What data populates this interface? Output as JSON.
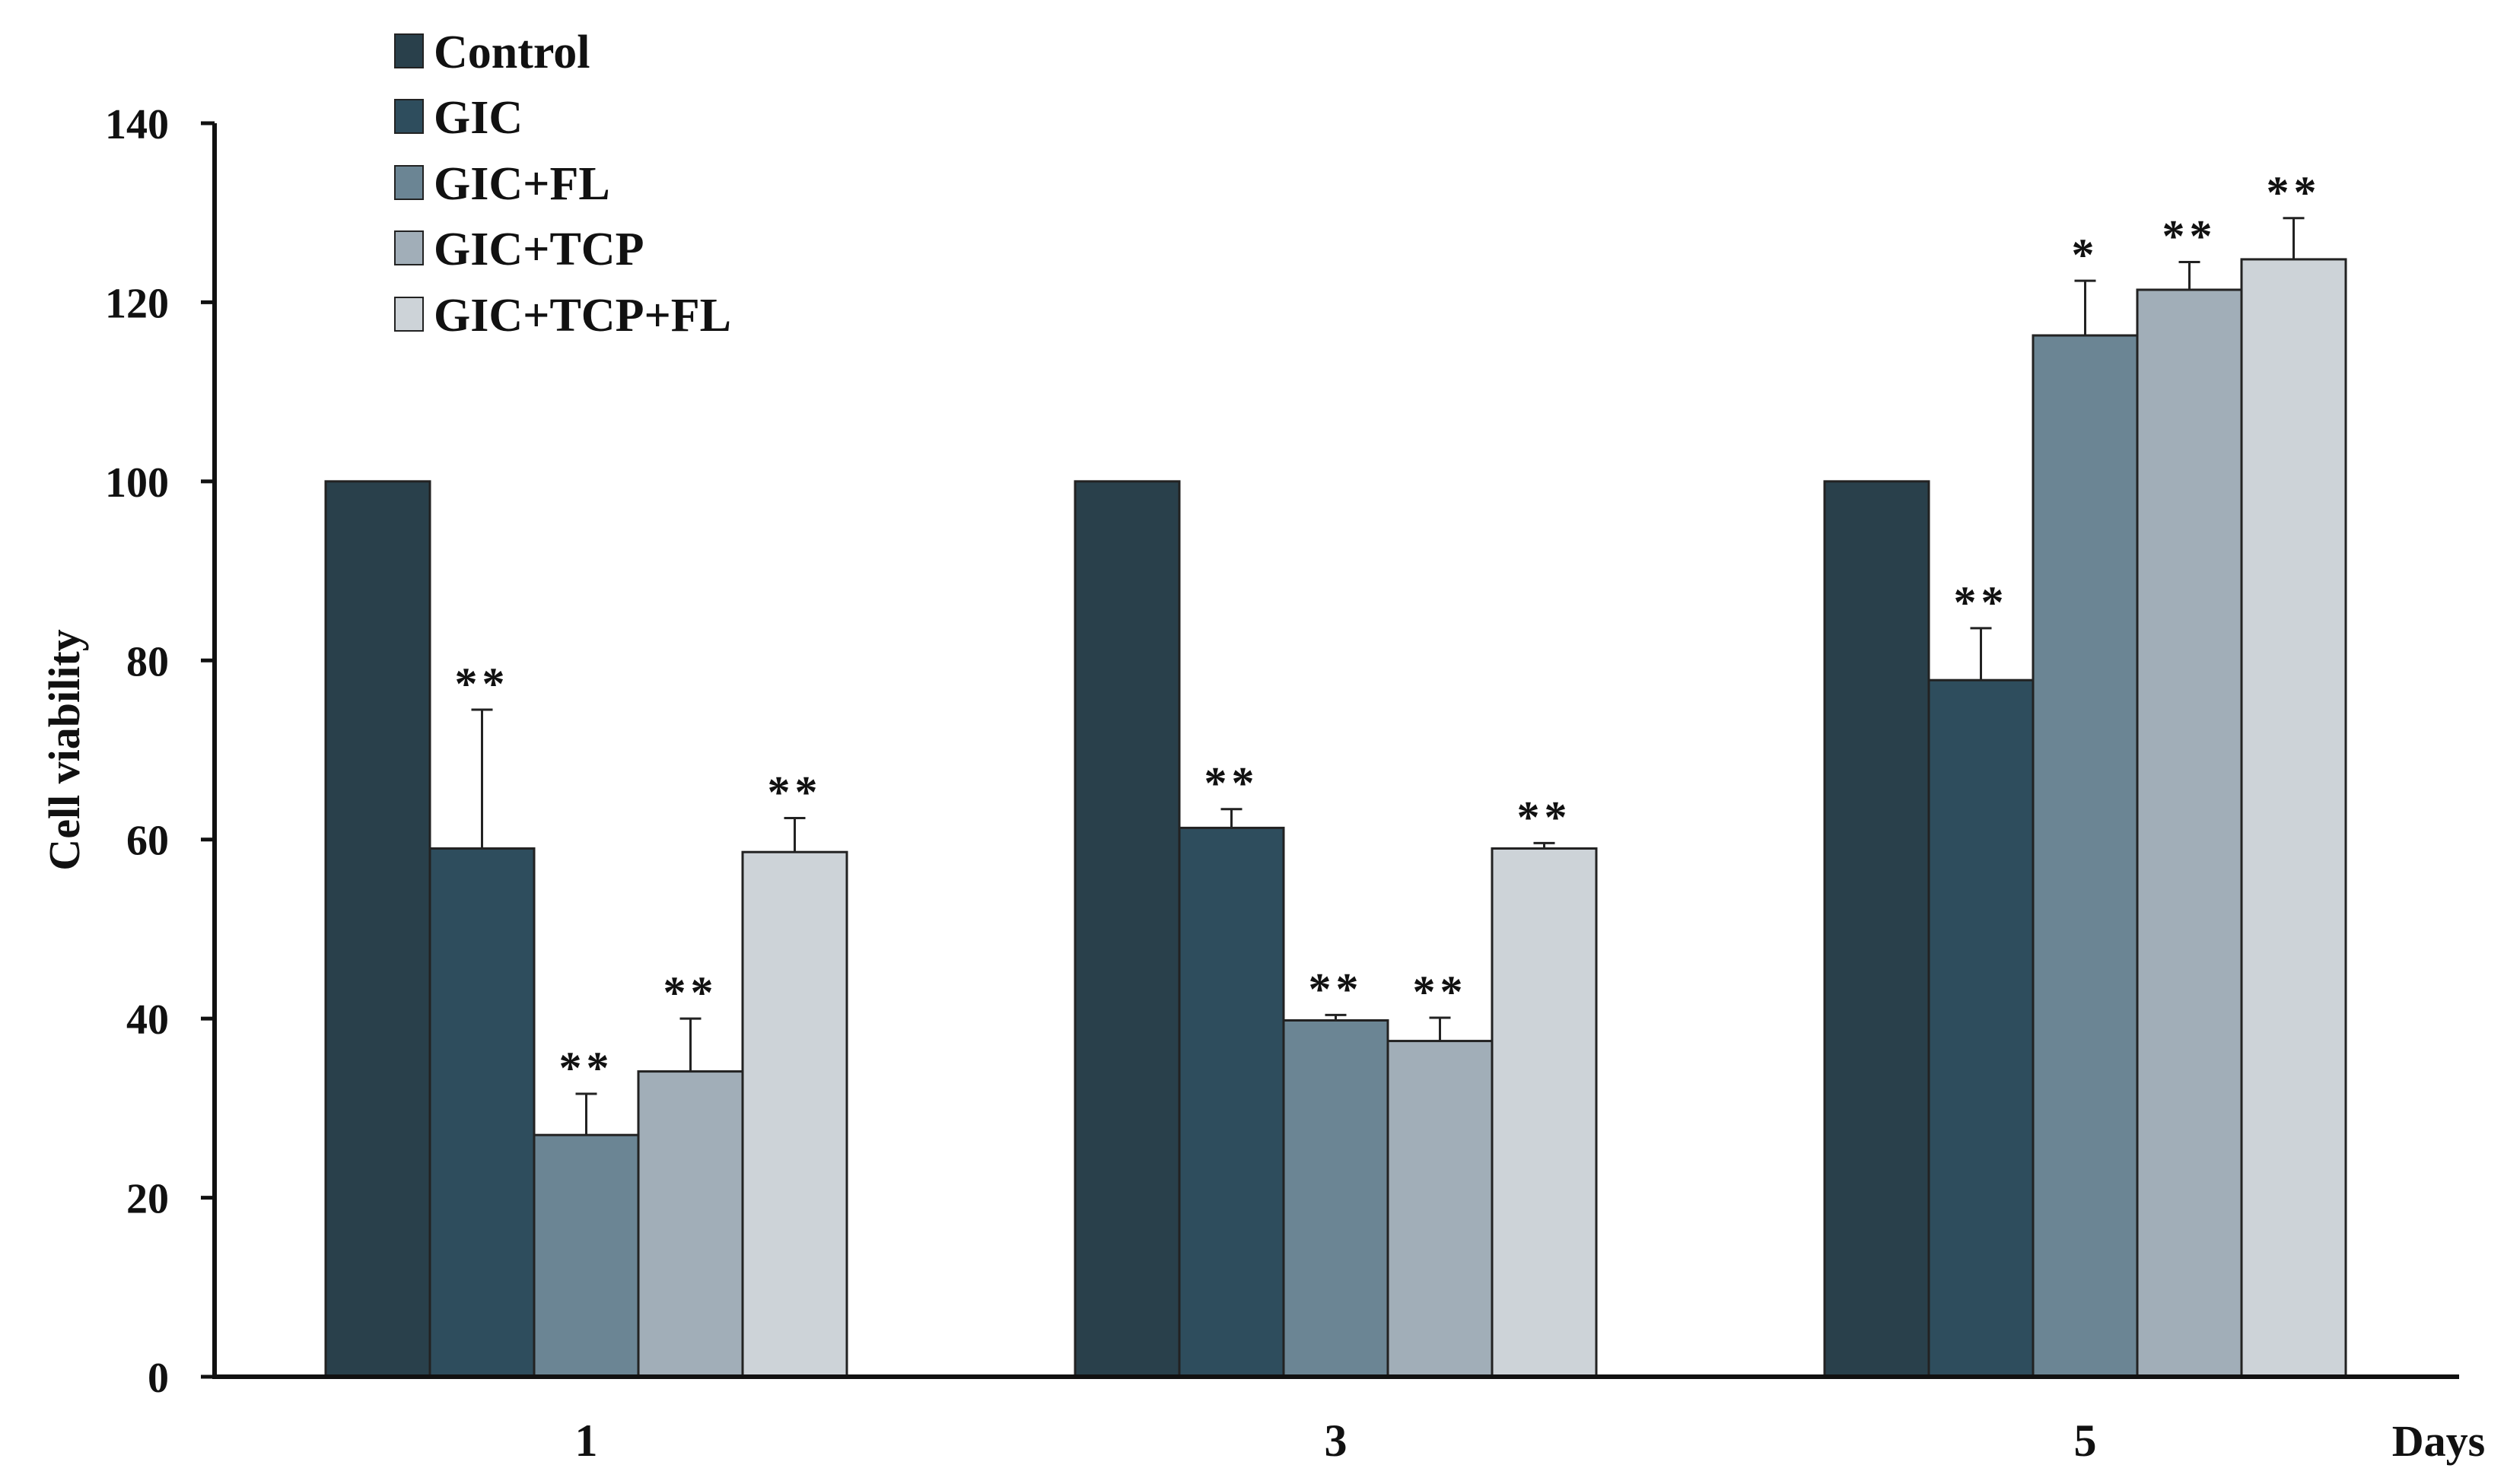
{
  "chart_data": {
    "type": "bar",
    "title": "",
    "xlabel": "Days",
    "ylabel": "Cell viability",
    "ylim": [
      0,
      140
    ],
    "yticks": [
      0,
      20,
      40,
      60,
      80,
      100,
      120,
      140
    ],
    "categories": [
      "1",
      "3",
      "5"
    ],
    "legend_position": "top-left",
    "grid": false,
    "series": [
      {
        "name": "Control",
        "color": "#29404b",
        "values": [
          100,
          100,
          100
        ],
        "errors": [
          0,
          0,
          0
        ],
        "significance": [
          "",
          "",
          ""
        ]
      },
      {
        "name": "GIC",
        "color": "#2e4d5d",
        "values": [
          59,
          61.3,
          77.8
        ],
        "errors": [
          15.5,
          2.1,
          5.8
        ],
        "significance": [
          "**",
          "**",
          "**"
        ]
      },
      {
        "name": "GIC+FL",
        "color": "#6b8594",
        "values": [
          27,
          39.8,
          116.3
        ],
        "errors": [
          4.6,
          0.6,
          6.1
        ],
        "significance": [
          "**",
          "**",
          "*"
        ]
      },
      {
        "name": "GIC+TCP",
        "color": "#a1aeb8",
        "values": [
          34.1,
          37.5,
          121.4
        ],
        "errors": [
          5.9,
          2.6,
          3.1
        ],
        "significance": [
          "**",
          "**",
          "**"
        ]
      },
      {
        "name": "GIC+TCP+FL",
        "color": "#cdd3d8",
        "values": [
          58.6,
          59,
          124.8
        ],
        "errors": [
          3.8,
          0.6,
          4.6
        ],
        "significance": [
          "**",
          "**",
          "**"
        ]
      }
    ]
  }
}
